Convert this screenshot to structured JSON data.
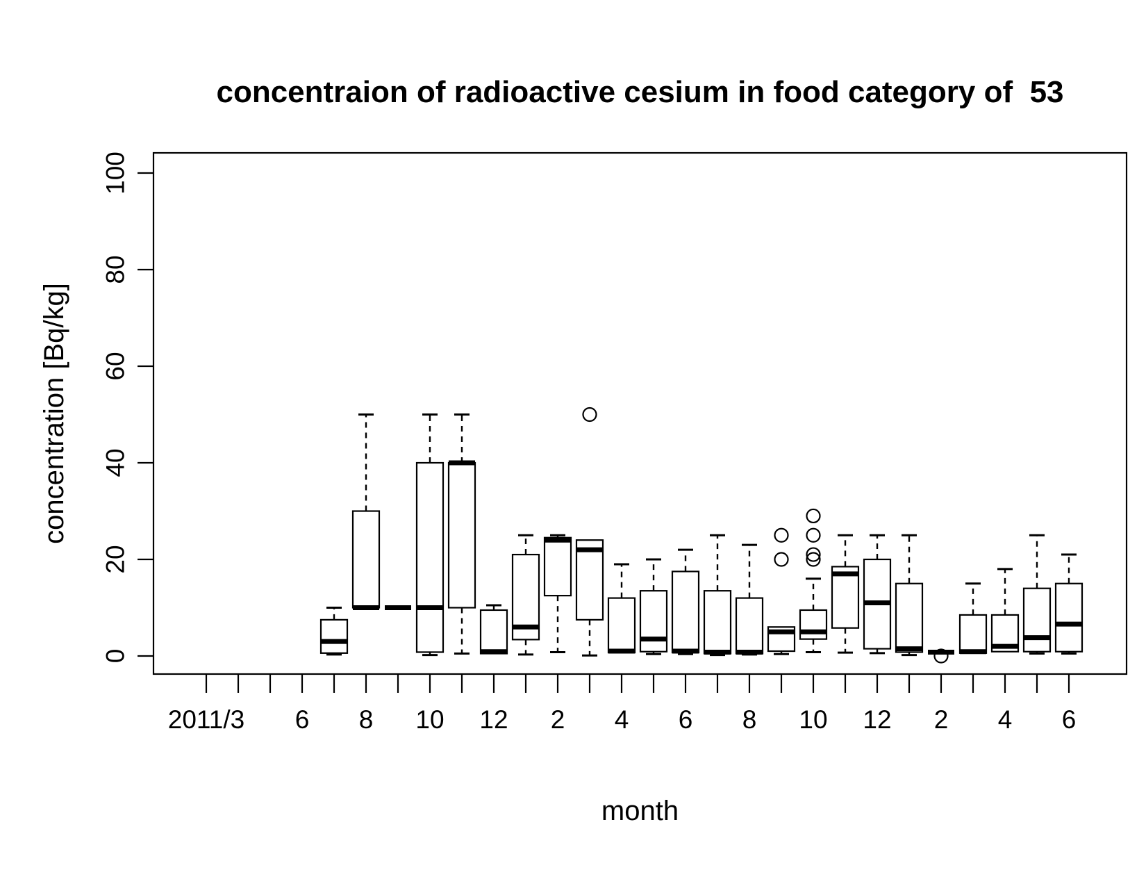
{
  "chart_data": {
    "type": "boxplot",
    "title": "concentraion of radioactive cesium in food category of  53",
    "xlabel": "month",
    "ylabel": "concentration [Bq/kg]",
    "ylim": [
      0,
      105
    ],
    "yticks": [
      0,
      20,
      40,
      60,
      80,
      100
    ],
    "grid": false,
    "legend": "none",
    "line_color": "#000000",
    "background_color": "#ffffff",
    "x_ticks": [
      {
        "month": "2011/3",
        "label": "2011/3"
      },
      {
        "month": "2011/4",
        "label": ""
      },
      {
        "month": "2011/5",
        "label": ""
      },
      {
        "month": "2011/6",
        "label": "6"
      },
      {
        "month": "2011/7",
        "label": ""
      },
      {
        "month": "2011/8",
        "label": "8"
      },
      {
        "month": "2011/9",
        "label": ""
      },
      {
        "month": "2011/10",
        "label": "10"
      },
      {
        "month": "2011/11",
        "label": ""
      },
      {
        "month": "2011/12",
        "label": "12"
      },
      {
        "month": "2012/1",
        "label": ""
      },
      {
        "month": "2012/2",
        "label": "2"
      },
      {
        "month": "2012/3",
        "label": ""
      },
      {
        "month": "2012/4",
        "label": "4"
      },
      {
        "month": "2012/5",
        "label": ""
      },
      {
        "month": "2012/6",
        "label": "6"
      },
      {
        "month": "2012/7",
        "label": ""
      },
      {
        "month": "2012/8",
        "label": "8"
      },
      {
        "month": "2012/9",
        "label": ""
      },
      {
        "month": "2012/10",
        "label": "10"
      },
      {
        "month": "2012/11",
        "label": ""
      },
      {
        "month": "2012/12",
        "label": "12"
      },
      {
        "month": "2013/1",
        "label": ""
      },
      {
        "month": "2013/2",
        "label": "2"
      },
      {
        "month": "2013/3",
        "label": ""
      },
      {
        "month": "2013/4",
        "label": "4"
      },
      {
        "month": "2013/5",
        "label": ""
      },
      {
        "month": "2013/6",
        "label": "6"
      }
    ],
    "boxes": [
      {
        "month": "2011/7",
        "tick_index": 5,
        "whisker_low": 0.3,
        "q1": 0.6,
        "median": 3,
        "q3": 7.5,
        "whisker_high": 10,
        "outliers": []
      },
      {
        "month": "2011/8",
        "tick_index": 6,
        "whisker_low": 10,
        "q1": 10,
        "median": 10,
        "q3": 30,
        "whisker_high": 50,
        "outliers": []
      },
      {
        "month": "2011/9",
        "tick_index": 7,
        "whisker_low": 10,
        "q1": 10,
        "median": 10,
        "q3": 10,
        "whisker_high": 10,
        "outliers": []
      },
      {
        "month": "2011/10",
        "tick_index": 8,
        "whisker_low": 0.2,
        "q1": 0.8,
        "median": 10,
        "q3": 40,
        "whisker_high": 50,
        "outliers": []
      },
      {
        "month": "2011/11",
        "tick_index": 9,
        "whisker_low": 0.5,
        "q1": 10,
        "median": 40,
        "q3": 40,
        "whisker_high": 50,
        "outliers": []
      },
      {
        "month": "2011/12",
        "tick_index": 10,
        "whisker_low": 0.5,
        "q1": 0.5,
        "median": 0.9,
        "q3": 9.5,
        "whisker_high": 10.5,
        "outliers": []
      },
      {
        "month": "2012/1",
        "tick_index": 11,
        "whisker_low": 0.3,
        "q1": 3.4,
        "median": 6,
        "q3": 21,
        "whisker_high": 25,
        "outliers": []
      },
      {
        "month": "2012/2",
        "tick_index": 12,
        "whisker_low": 0.8,
        "q1": 12.5,
        "median": 24,
        "q3": 24.5,
        "whisker_high": 25,
        "outliers": []
      },
      {
        "month": "2012/3",
        "tick_index": 13,
        "whisker_low": 0.1,
        "q1": 7.5,
        "median": 22,
        "q3": 24,
        "whisker_high": 24,
        "outliers": [
          50
        ]
      },
      {
        "month": "2012/4",
        "tick_index": 14,
        "whisker_low": 0.7,
        "q1": 0.7,
        "median": 1,
        "q3": 12,
        "whisker_high": 19,
        "outliers": []
      },
      {
        "month": "2012/5",
        "tick_index": 15,
        "whisker_low": 0.4,
        "q1": 0.9,
        "median": 3.5,
        "q3": 13.5,
        "whisker_high": 20,
        "outliers": []
      },
      {
        "month": "2012/6",
        "tick_index": 16,
        "whisker_low": 0.4,
        "q1": 0.7,
        "median": 1,
        "q3": 17.5,
        "whisker_high": 22,
        "outliers": []
      },
      {
        "month": "2012/7",
        "tick_index": 17,
        "whisker_low": 0.2,
        "q1": 0.5,
        "median": 0.8,
        "q3": 13.5,
        "whisker_high": 25,
        "outliers": []
      },
      {
        "month": "2012/8",
        "tick_index": 18,
        "whisker_low": 0.3,
        "q1": 0.5,
        "median": 0.8,
        "q3": 12,
        "whisker_high": 23,
        "outliers": []
      },
      {
        "month": "2012/9",
        "tick_index": 19,
        "whisker_low": 0.4,
        "q1": 1,
        "median": 5,
        "q3": 6,
        "whisker_high": 6,
        "outliers": [
          20,
          25
        ]
      },
      {
        "month": "2012/10",
        "tick_index": 20,
        "whisker_low": 0.8,
        "q1": 3.5,
        "median": 5,
        "q3": 9.5,
        "whisker_high": 16,
        "outliers": [
          20,
          21,
          25,
          29
        ]
      },
      {
        "month": "2012/11",
        "tick_index": 21,
        "whisker_low": 0.7,
        "q1": 5.8,
        "median": 17,
        "q3": 18.5,
        "whisker_high": 25,
        "outliers": []
      },
      {
        "month": "2012/12",
        "tick_index": 22,
        "whisker_low": 0.6,
        "q1": 1.5,
        "median": 11,
        "q3": 20,
        "whisker_high": 25,
        "outliers": []
      },
      {
        "month": "2013/1",
        "tick_index": 23,
        "whisker_low": 0.2,
        "q1": 0.8,
        "median": 1.5,
        "q3": 15,
        "whisker_high": 25,
        "outliers": []
      },
      {
        "month": "2013/2",
        "tick_index": 24,
        "whisker_low": 0.8,
        "q1": 0.8,
        "median": 0.8,
        "q3": 0.8,
        "whisker_high": 0.8,
        "outliers": [
          0
        ]
      },
      {
        "month": "2013/3",
        "tick_index": 25,
        "whisker_low": 0.6,
        "q1": 0.6,
        "median": 0.9,
        "q3": 8.5,
        "whisker_high": 15,
        "outliers": []
      },
      {
        "month": "2013/4",
        "tick_index": 26,
        "whisker_low": 0.9,
        "q1": 0.9,
        "median": 2,
        "q3": 8.5,
        "whisker_high": 18,
        "outliers": []
      },
      {
        "month": "2013/5",
        "tick_index": 27,
        "whisker_low": 0.5,
        "q1": 0.9,
        "median": 3.8,
        "q3": 14,
        "whisker_high": 25,
        "outliers": []
      },
      {
        "month": "2013/6",
        "tick_index": 28,
        "whisker_low": 0.5,
        "q1": 0.9,
        "median": 6.6,
        "q3": 15,
        "whisker_high": 21,
        "outliers": []
      }
    ]
  }
}
